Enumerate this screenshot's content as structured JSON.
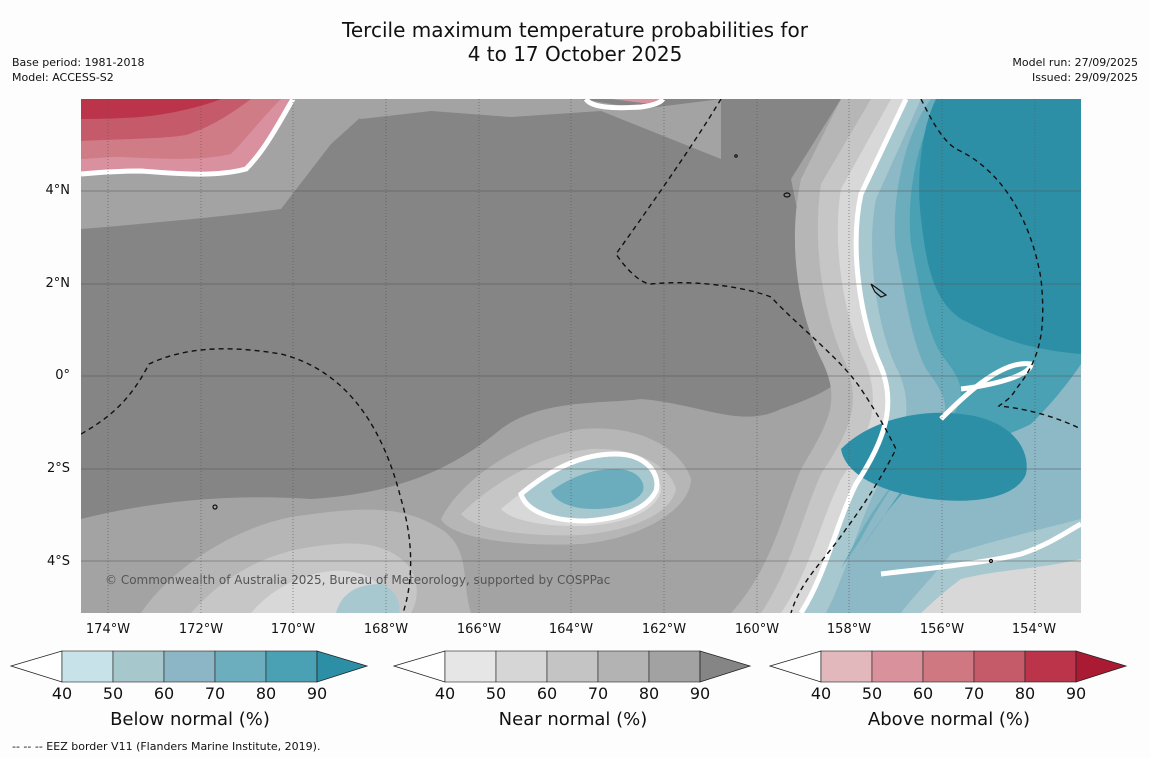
{
  "title": {
    "line1": "Tercile maximum temperature probabilities for",
    "line2": "4 to 17 October 2025"
  },
  "meta_left": {
    "base_period": "Base period: 1981-2018",
    "model": "Model: ACCESS-S2"
  },
  "meta_right": {
    "model_run": "Model run: 27/09/2025",
    "issued": "Issued: 29/09/2025"
  },
  "map": {
    "lat_labels": [
      "4°N",
      "2°N",
      "0°",
      "2°S",
      "4°S"
    ],
    "lon_labels": [
      "174°W",
      "172°W",
      "170°W",
      "168°W",
      "166°W",
      "164°W",
      "162°W",
      "160°W",
      "158°W",
      "156°W",
      "154°W"
    ],
    "copyright": "© Commonwealth of Australia 2025, Bureau of Meteorology, supported by COSPPac",
    "colors": {
      "near90": "#858585",
      "near80": "#a3a3a3",
      "near70": "#b6b6b6",
      "near60": "#c6c6c6",
      "near50": "#d8d8d8",
      "below90": "#2d8fa6",
      "below80": "#4aa1b3",
      "below70": "#6cadbd",
      "below60": "#8db8c6",
      "below50": "#a8c8cf",
      "above90": "#bb3449",
      "above80": "#c55a6b",
      "above70": "#cf7c87",
      "above60": "#d991a0"
    }
  },
  "legends": [
    {
      "title": "Below normal (%)",
      "ticks": [
        "40",
        "50",
        "60",
        "70",
        "80",
        "90"
      ],
      "colors": [
        "#c7e3e9",
        "#a6c8cd",
        "#8cb6c5",
        "#6cadbe",
        "#4aa1b3",
        "#2d8fa6"
      ]
    },
    {
      "title": "Near normal (%)",
      "ticks": [
        "40",
        "50",
        "60",
        "70",
        "80",
        "90"
      ],
      "colors": [
        "#e6e6e6",
        "#d6d6d6",
        "#c4c4c4",
        "#b3b3b3",
        "#a2a2a2",
        "#858585"
      ]
    },
    {
      "title": "Above normal (%)",
      "ticks": [
        "40",
        "50",
        "60",
        "70",
        "80",
        "90"
      ],
      "colors": [
        "#e3b8bd",
        "#d9929c",
        "#cf7882",
        "#c55a69",
        "#bb3449",
        "#ab1a33"
      ]
    }
  ],
  "footer": "--  --  -- EEZ border V11 (Flanders Marine Institute, 2019)."
}
